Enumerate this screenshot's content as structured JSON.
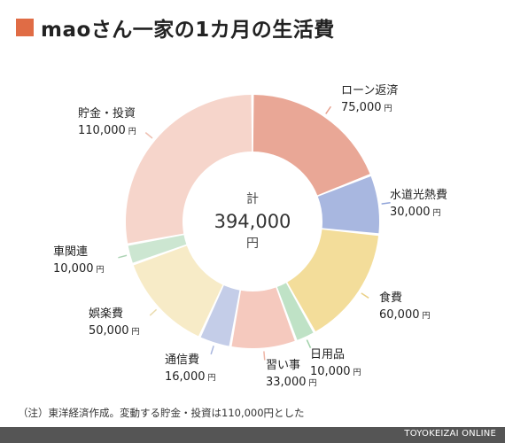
{
  "header": {
    "title": "maoさん一家の1カ月の生活費",
    "accent_color": "#e06c45"
  },
  "chart_data": {
    "type": "pie",
    "donut": true,
    "start_angle_deg": 0,
    "direction": "clockwise",
    "center": {
      "label_top": "計",
      "value": "394,000",
      "unit": "円"
    },
    "slices": [
      {
        "name": "ローン返済",
        "value": 75000,
        "value_text": "75,000",
        "unit": "円",
        "color": "#e9a796",
        "line_color": "#e6a08d"
      },
      {
        "name": "水道光熱費",
        "value": 30000,
        "value_text": "30,000",
        "unit": "円",
        "color": "#a8b7e0",
        "line_color": "#8fa3d8"
      },
      {
        "name": "食費",
        "value": 60000,
        "value_text": "60,000",
        "unit": "円",
        "color": "#f3dd9a",
        "line_color": "#ead087"
      },
      {
        "name": "日用品",
        "value": 10000,
        "value_text": "10,000",
        "unit": "円",
        "color": "#bfe2c6",
        "line_color": "#9fd1a8"
      },
      {
        "name": "習い事",
        "value": 33000,
        "value_text": "33,000",
        "unit": "円",
        "color": "#f5c9be",
        "line_color": "#eeb5a6"
      },
      {
        "name": "通信費",
        "value": 16000,
        "value_text": "16,000",
        "unit": "円",
        "color": "#c4cde8",
        "line_color": "#a9b6de"
      },
      {
        "name": "娯楽費",
        "value": 50000,
        "value_text": "50,000",
        "unit": "円",
        "color": "#f7ebc7",
        "line_color": "#eadcae"
      },
      {
        "name": "車関連",
        "value": 10000,
        "value_text": "10,000",
        "unit": "円",
        "color": "#cce6d1",
        "line_color": "#aed4b6"
      },
      {
        "name": "貯金・投資",
        "value": 110000,
        "value_text": "110,000",
        "unit": "円",
        "color": "#f6d5cb",
        "line_color": "#eebfb1"
      }
    ]
  },
  "note": "（注）東洋経済作成。変動する貯金・投資は110,000円とした",
  "footer": {
    "source": "TOYOKEIZAI ONLINE"
  }
}
